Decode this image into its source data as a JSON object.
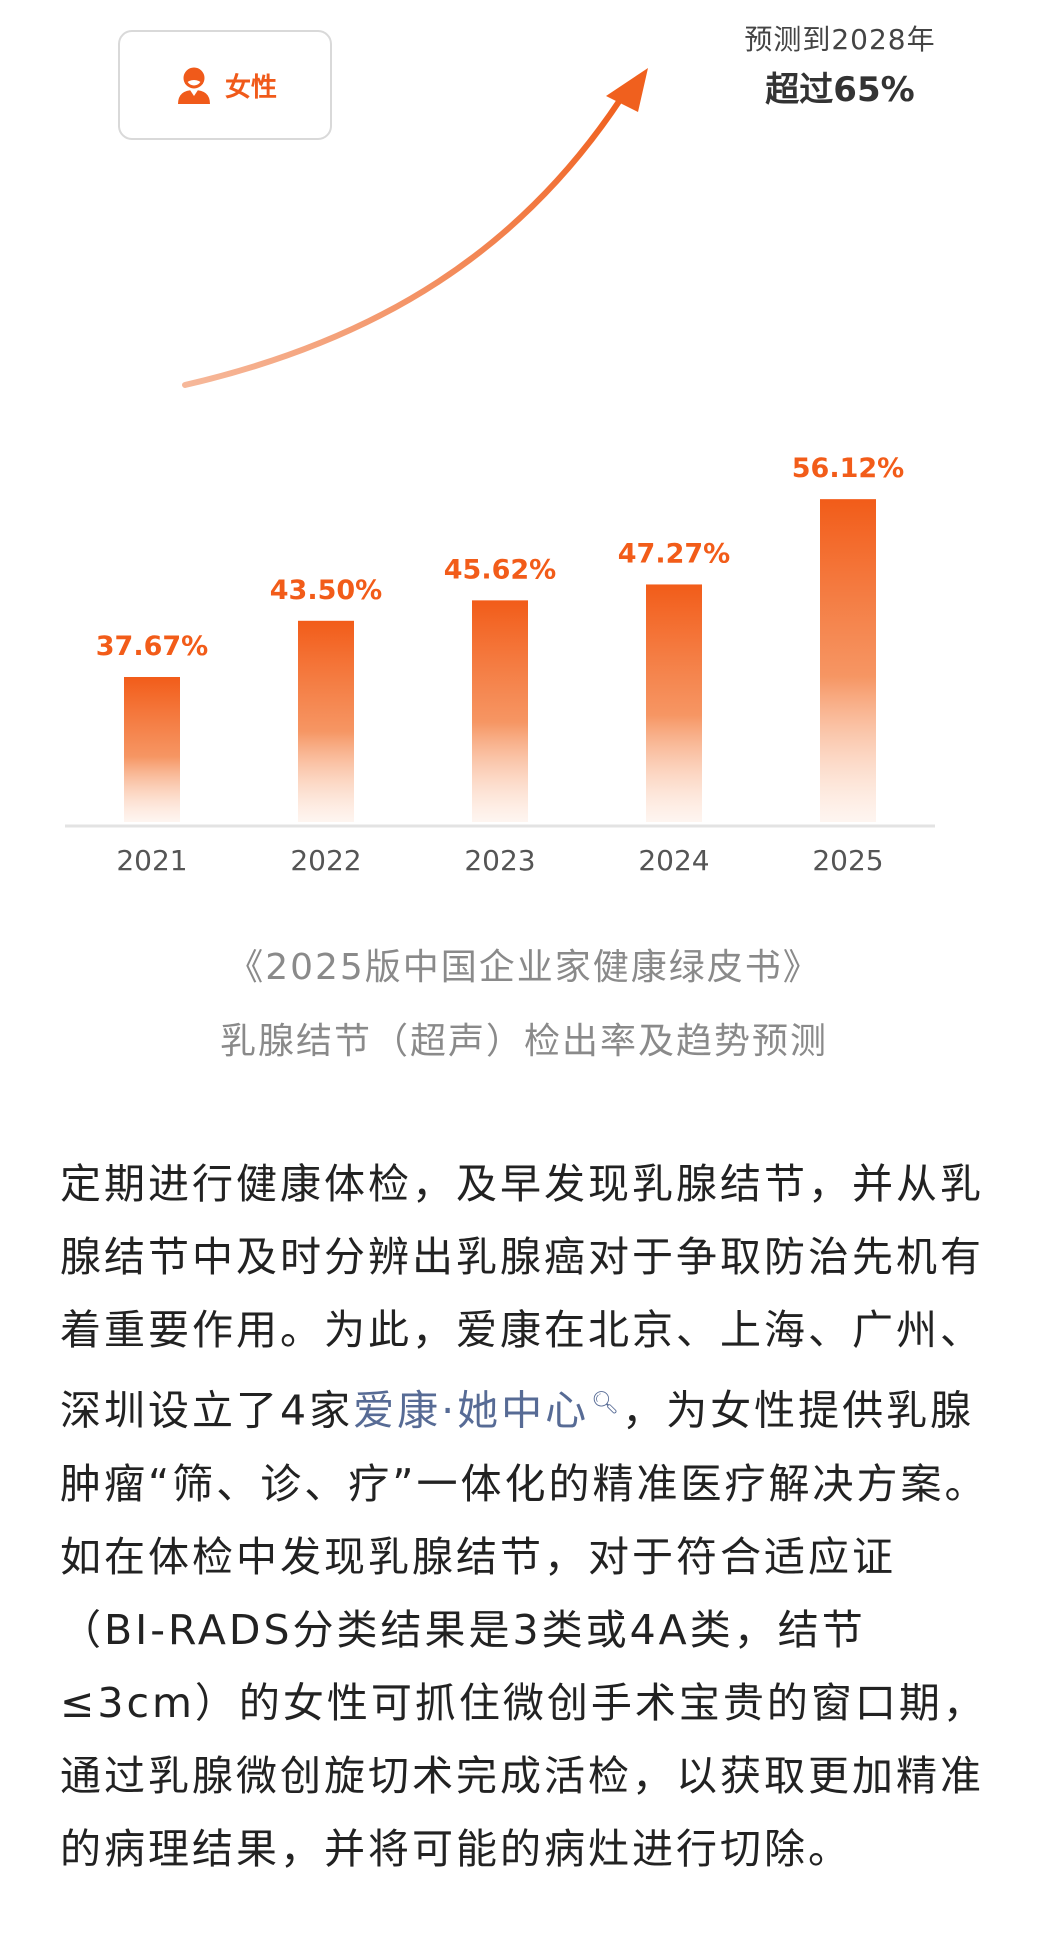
{
  "badge": {
    "label": "女性",
    "icon": "woman-avatar-icon"
  },
  "forecast": {
    "line1": "预测到2028年",
    "line2": "超过65%"
  },
  "chart_data": {
    "type": "bar",
    "categories": [
      "2021",
      "2022",
      "2023",
      "2024",
      "2025"
    ],
    "values": [
      37.67,
      43.5,
      45.62,
      47.27,
      56.12
    ],
    "value_labels": [
      "37.67%",
      "43.50%",
      "45.62%",
      "47.27%",
      "56.12%"
    ],
    "title": "",
    "xlabel": "",
    "ylabel": "",
    "ylim": [
      0,
      65
    ],
    "grid": false,
    "bar_color": "#f25c19",
    "label_color": "#f25c19",
    "trend_arrow": true
  },
  "caption": {
    "line1": "《2025版中国企业家健康绿皮书》",
    "line2": "乳腺结节（超声）检出率及趋势预测"
  },
  "article": {
    "part1": "定期进行健康体检，及早发现乳腺结节，并从乳腺结节中及时分辨出乳腺癌对于争取防治先机有着重要作用。为此，爱康在北京、上海、广州、深圳设立了4家",
    "link": "爱康·她中心",
    "part2": "，为女性提供乳腺肿瘤“筛、诊、疗”一体化的精准医疗解决方案。如在体检中发现乳腺结节，对于符合适应证（BI-RADS分类结果是3类或4A类，结节≤3cm）的女性可抓住微创手术宝贵的窗口期，通过乳腺微创旋切术完成活检，以获取更加精准的病理结果，并将可能的病灶进行切除。"
  }
}
